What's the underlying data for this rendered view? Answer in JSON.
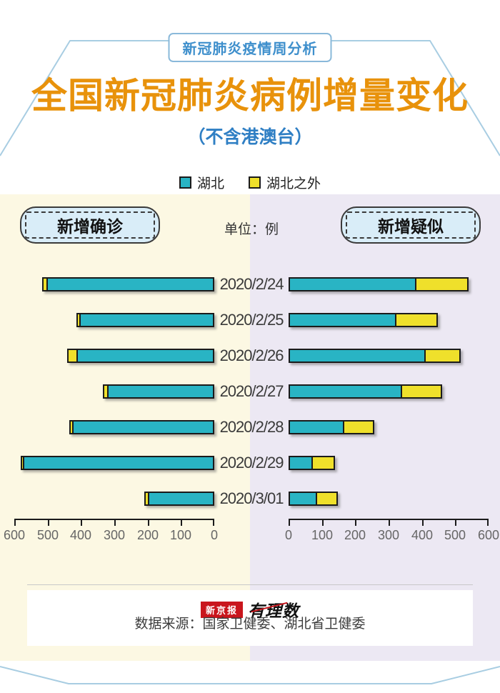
{
  "page": {
    "badge": "新冠肺炎疫情周分析",
    "title": "全国新冠肺炎病例增量变化",
    "subtitle": "（不含港澳台）"
  },
  "colors": {
    "hubei_teal": "#29B4C4",
    "other_yellow": "#EFE02B",
    "title_orange": "#E8920B",
    "badge_blue": "#3E8FCC",
    "frame_blue": "#A8CDE2",
    "left_panel_bg": "#FCF8E3",
    "right_panel_bg": "#ECE8F3",
    "label_box_bg": "#D9EDF8",
    "logo_red": "#C9161D"
  },
  "chart_data": {
    "type": "bar",
    "variant": "diverging-horizontal",
    "unit_label": "单位：例",
    "categories": [
      "2020/2/24",
      "2020/2/25",
      "2020/2/26",
      "2020/2/27",
      "2020/2/28",
      "2020/2/29",
      "2020/3/01"
    ],
    "legend": [
      {
        "label": "湖北",
        "color_key": "hubei_teal"
      },
      {
        "label": "湖北之外",
        "color_key": "other_yellow"
      }
    ],
    "panels": {
      "left": {
        "title": "新增确诊",
        "direction": "right-to-left",
        "axis_ticks": [
          "600",
          "500",
          "400",
          "300",
          "200",
          "100",
          "0"
        ],
        "axis_range": [
          0,
          600
        ],
        "series": [
          {
            "name": "湖北",
            "color_key": "hubei_teal",
            "values": [
              499,
              401,
              409,
              318,
              423,
              570,
              196
            ]
          },
          {
            "name": "湖北之外",
            "color_key": "other_yellow",
            "values": [
              9,
              5,
              24,
              9,
              4,
              3,
              6
            ]
          }
        ]
      },
      "right": {
        "title": "新增疑似",
        "direction": "left-to-right",
        "axis_ticks": [
          "0",
          "100",
          "200",
          "300",
          "400",
          "500",
          "600"
        ],
        "axis_range": [
          0,
          600
        ],
        "series": [
          {
            "name": "湖北",
            "color_key": "hubei_teal",
            "values": [
              374,
              315,
              403,
              332,
              159,
              65,
              78
            ]
          },
          {
            "name": "湖北之外",
            "color_key": "other_yellow",
            "values": [
              156,
              124,
              105,
              120,
              89,
              67,
              63
            ]
          }
        ]
      }
    }
  },
  "footer": {
    "logo_primary": "新京报",
    "logo_secondary": "有理数",
    "source": "数据来源：国家卫健委、湖北省卫健委"
  }
}
